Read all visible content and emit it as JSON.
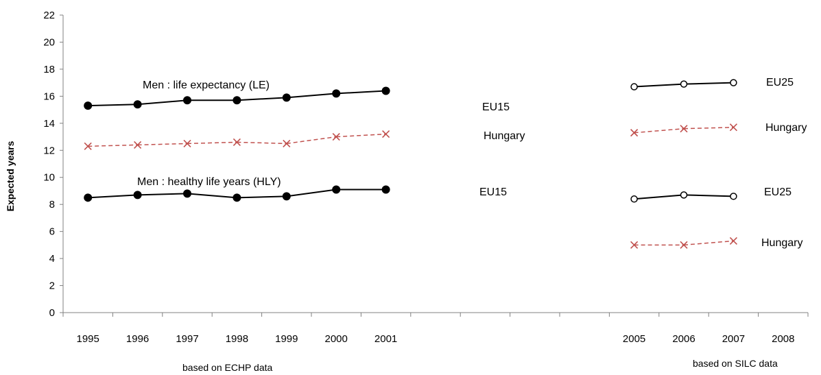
{
  "chart_data": {
    "type": "line",
    "ylabel": "Expected years",
    "ylim": [
      0,
      22
    ],
    "yticks": [
      "0",
      "2",
      "4",
      "6",
      "8",
      "10",
      "12",
      "14",
      "16",
      "18",
      "20",
      "22"
    ],
    "categories": [
      "1995",
      "1996",
      "1997",
      "1998",
      "1999",
      "2000",
      "2001",
      "",
      "",
      "",
      "",
      "2005",
      "2006",
      "2007",
      "2008"
    ],
    "grid": false,
    "series": [
      {
        "group": "le",
        "region": "EU15",
        "marker": "filled-circle",
        "color": "#000000",
        "dash": false,
        "values": [
          15.3,
          15.4,
          15.7,
          15.7,
          15.9,
          16.2,
          16.4,
          null,
          null,
          null,
          null,
          null,
          null,
          null,
          null
        ]
      },
      {
        "group": "le",
        "region": "Hungary",
        "marker": "x",
        "color": "#c0504d",
        "dash": true,
        "values": [
          12.3,
          12.4,
          12.5,
          12.6,
          12.5,
          13.0,
          13.2,
          null,
          null,
          null,
          null,
          null,
          null,
          null,
          null
        ]
      },
      {
        "group": "le",
        "region": "EU25",
        "marker": "open-circle",
        "color": "#000000",
        "dash": false,
        "values": [
          null,
          null,
          null,
          null,
          null,
          null,
          null,
          null,
          null,
          null,
          null,
          16.7,
          16.9,
          17.0,
          null
        ]
      },
      {
        "group": "le",
        "region": "Hungary",
        "marker": "x",
        "color": "#c0504d",
        "dash": true,
        "values": [
          null,
          null,
          null,
          null,
          null,
          null,
          null,
          null,
          null,
          null,
          null,
          13.3,
          13.6,
          13.7,
          null
        ]
      },
      {
        "group": "hly",
        "region": "EU15",
        "marker": "filled-circle",
        "color": "#000000",
        "dash": false,
        "values": [
          8.5,
          8.7,
          8.8,
          8.5,
          8.6,
          9.1,
          9.1,
          null,
          null,
          null,
          null,
          null,
          null,
          null,
          null
        ]
      },
      {
        "group": "hly",
        "region": "EU25",
        "marker": "open-circle",
        "color": "#000000",
        "dash": false,
        "values": [
          null,
          null,
          null,
          null,
          null,
          null,
          null,
          null,
          null,
          null,
          null,
          8.4,
          8.7,
          8.6,
          null
        ]
      },
      {
        "group": "hly",
        "region": "Hungary",
        "marker": "x",
        "color": "#c0504d",
        "dash": true,
        "values": [
          null,
          null,
          null,
          null,
          null,
          null,
          null,
          null,
          null,
          null,
          null,
          5.0,
          5.0,
          5.3,
          null
        ]
      }
    ],
    "annotations": {
      "le_title": "Men : life expectancy (LE)",
      "hly_title": "Men : healthy life years (HLY)",
      "le_eu15": "EU15",
      "le_hungary_left": "Hungary",
      "le_eu25": "EU25",
      "le_hungary_right": "Hungary",
      "hly_eu15": "EU15",
      "hly_eu25": "EU25",
      "hly_hungary_right": "Hungary"
    },
    "footnotes": {
      "left": "based on ECHP data",
      "right": "based on SILC data"
    }
  }
}
